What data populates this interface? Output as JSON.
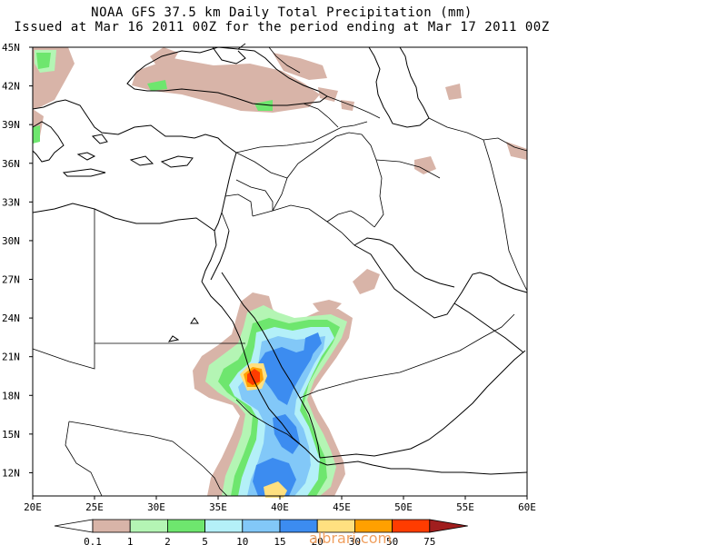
{
  "title_line1": "NOAA GFS 37.5 km Daily Total Precipitation (mm)",
  "title_line2": "Issued at Mar 16 2011 00Z for the period ending at Mar 17 2011 00Z",
  "lat_ticks": [
    "45N",
    "42N",
    "39N",
    "36N",
    "33N",
    "30N",
    "27N",
    "24N",
    "21N",
    "18N",
    "15N",
    "12N"
  ],
  "lon_ticks": [
    "20E",
    "25E",
    "30E",
    "35E",
    "40E",
    "45E",
    "50E",
    "55E",
    "60E"
  ],
  "colorbar": {
    "labels": [
      "0.1",
      "1",
      "2",
      "5",
      "10",
      "15",
      "20",
      "30",
      "50",
      "75"
    ],
    "colors": [
      "#ffffff",
      "#d8b4a8",
      "#b4f5b4",
      "#6ee66e",
      "#b4f0f8",
      "#82c8f8",
      "#3c8cf0",
      "#ffe080",
      "#ffa000",
      "#ff3c00",
      "#a01e1e"
    ]
  },
  "watermark": "albrari.com"
}
